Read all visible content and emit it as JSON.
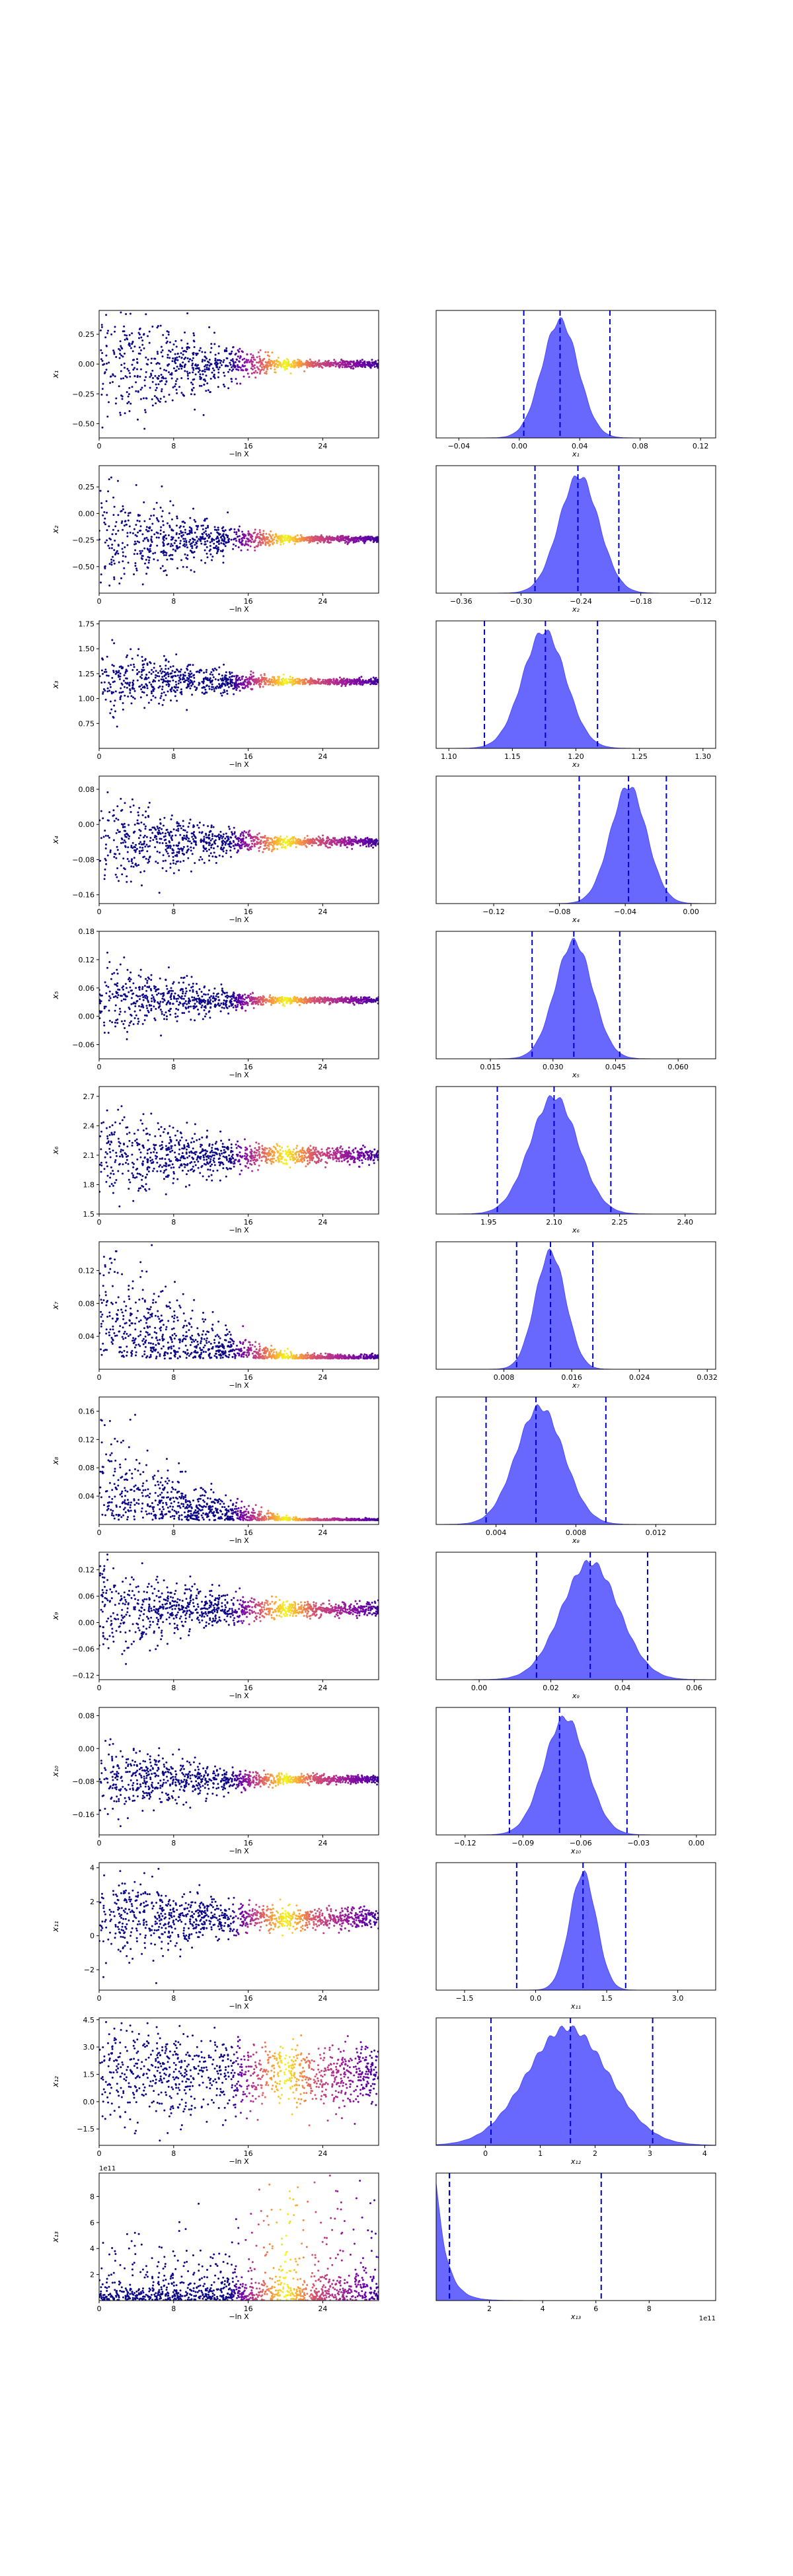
{
  "colors": {
    "hist_fill": "#4d4dff",
    "quantile_line": "#0000cc",
    "axes": "#000000",
    "scatter_colormap": [
      "#0d0887",
      "#6a00a8",
      "#b12a90",
      "#e16462",
      "#fca636",
      "#f0f921"
    ]
  },
  "chart_data": {
    "type": "scatter",
    "description_of_panels": "Left column: trace plots of each parameter vs -ln X, colored by posterior weight (plasma). Right column: marginal posterior histograms with dashed 2.5/50/97.5 percent lines.",
    "trace_xlabel": "−ln X",
    "trace_xticks": [
      "0",
      "8",
      "16",
      "24"
    ],
    "trace_xlim": [
      0,
      30
    ],
    "rows": [
      {
        "label": "x₁",
        "trace_yticks": [
          "0.25",
          "0.00",
          "−0.25",
          "−0.50"
        ],
        "trace_ylim": [
          -0.62,
          0.45
        ],
        "trace_center": 0.0,
        "trace_spread_start": 0.3,
        "trace_spread_end": 0.015,
        "hist_xlabel": "x₁",
        "hist_xticks": [
          "−0.04",
          "0.00",
          "0.04",
          "0.08",
          "0.12"
        ],
        "hist_xlim": [
          -0.055,
          0.13
        ],
        "hist_mean": 0.027,
        "hist_sd": 0.012,
        "quantiles": [
          0.003,
          0.027,
          0.06
        ]
      },
      {
        "label": "x₂",
        "trace_yticks": [
          "0.25",
          "0.00",
          "−0.25",
          "−0.50"
        ],
        "trace_ylim": [
          -0.75,
          0.45
        ],
        "trace_center": -0.24,
        "trace_spread_start": 0.25,
        "trace_spread_end": 0.015,
        "hist_xlabel": "x₂",
        "hist_xticks": [
          "−0.36",
          "−0.30",
          "−0.24",
          "−0.18",
          "−0.12"
        ],
        "hist_xlim": [
          -0.385,
          -0.105
        ],
        "hist_mean": -0.242,
        "hist_sd": 0.02,
        "quantiles": [
          -0.286,
          -0.243,
          -0.202
        ]
      },
      {
        "label": "x₃",
        "trace_yticks": [
          "1.75",
          "1.50",
          "1.25",
          "1.00",
          "0.75"
        ],
        "trace_ylim": [
          0.5,
          1.78
        ],
        "trace_center": 1.17,
        "trace_spread_start": 0.18,
        "trace_spread_end": 0.015,
        "hist_xlabel": "x₃",
        "hist_xticks": [
          "1.10",
          "1.15",
          "1.20",
          "1.25",
          "1.30"
        ],
        "hist_xlim": [
          1.09,
          1.31
        ],
        "hist_mean": 1.175,
        "hist_sd": 0.017,
        "quantiles": [
          1.128,
          1.176,
          1.217
        ]
      },
      {
        "label": "x₄",
        "trace_yticks": [
          "0.08",
          "0.00",
          "−0.08",
          "−0.16"
        ],
        "trace_ylim": [
          -0.18,
          0.11
        ],
        "trace_center": -0.04,
        "trace_spread_start": 0.05,
        "trace_spread_end": 0.005,
        "hist_xlabel": "x₄",
        "hist_xticks": [
          "−0.12",
          "−0.08",
          "−0.04",
          "0.00"
        ],
        "hist_xlim": [
          -0.155,
          0.015
        ],
        "hist_mean": -0.038,
        "hist_sd": 0.011,
        "quantiles": [
          -0.068,
          -0.038,
          -0.015
        ]
      },
      {
        "label": "x₅",
        "trace_yticks": [
          "0.18",
          "0.12",
          "0.06",
          "0.00",
          "−0.06"
        ],
        "trace_ylim": [
          -0.09,
          0.18
        ],
        "trace_center": 0.034,
        "trace_spread_start": 0.04,
        "trace_spread_end": 0.003,
        "hist_xlabel": "x₅",
        "hist_xticks": [
          "0.015",
          "0.030",
          "0.045",
          "0.060"
        ],
        "hist_xlim": [
          0.002,
          0.069
        ],
        "hist_mean": 0.035,
        "hist_sd": 0.0045,
        "quantiles": [
          0.025,
          0.035,
          0.046
        ]
      },
      {
        "label": "x₆",
        "trace_yticks": [
          "2.7",
          "2.4",
          "2.1",
          "1.8",
          "1.5"
        ],
        "trace_ylim": [
          1.5,
          2.8
        ],
        "trace_center": 2.1,
        "trace_spread_start": 0.2,
        "trace_spread_end": 0.04,
        "hist_xlabel": "x₆",
        "hist_xticks": [
          "1.95",
          "2.10",
          "2.25",
          "2.40"
        ],
        "hist_xlim": [
          1.83,
          2.47
        ],
        "hist_mean": 2.1,
        "hist_sd": 0.055,
        "quantiles": [
          1.97,
          2.1,
          2.23
        ]
      },
      {
        "label": "x₇",
        "trace_yticks": [
          "0.12",
          "0.08",
          "0.04"
        ],
        "trace_ylim": [
          0.0,
          0.155
        ],
        "trace_center": 0.013,
        "trace_spread_start": 0.06,
        "trace_spread_end": 0.002,
        "hist_xlabel": "x₇",
        "hist_xticks": [
          "0.008",
          "0.016",
          "0.024",
          "0.032"
        ],
        "hist_xlim": [
          0.0,
          0.033
        ],
        "hist_mean": 0.0135,
        "hist_sd": 0.0018,
        "quantiles": [
          0.0095,
          0.0135,
          0.0185
        ]
      },
      {
        "label": "x₈",
        "trace_yticks": [
          "0.16",
          "0.12",
          "0.08",
          "0.04"
        ],
        "trace_ylim": [
          0.0,
          0.18
        ],
        "trace_center": 0.006,
        "trace_spread_start": 0.06,
        "trace_spread_end": 0.001,
        "hist_xlabel": "x₈",
        "hist_xticks": [
          "0.004",
          "0.008",
          "0.012"
        ],
        "hist_xlim": [
          0.001,
          0.015
        ],
        "hist_mean": 0.0062,
        "hist_sd": 0.0012,
        "quantiles": [
          0.0035,
          0.006,
          0.0095
        ]
      },
      {
        "label": "x₉",
        "trace_yticks": [
          "0.12",
          "0.06",
          "0.00",
          "−0.06",
          "−0.12"
        ],
        "trace_ylim": [
          -0.13,
          0.16
        ],
        "trace_center": 0.03,
        "trace_spread_start": 0.05,
        "trace_spread_end": 0.008,
        "hist_xlabel": "x₉",
        "hist_xticks": [
          "0.00",
          "0.02",
          "0.04",
          "0.06"
        ],
        "hist_xlim": [
          -0.012,
          0.066
        ],
        "hist_mean": 0.031,
        "hist_sd": 0.008,
        "quantiles": [
          0.016,
          0.031,
          0.047
        ]
      },
      {
        "label": "x₁₀",
        "trace_yticks": [
          "0.08",
          "0.00",
          "−0.08",
          "−0.16"
        ],
        "trace_ylim": [
          -0.21,
          0.1
        ],
        "trace_center": -0.075,
        "trace_spread_start": 0.045,
        "trace_spread_end": 0.005,
        "hist_xlabel": "x₁₀",
        "hist_xticks": [
          "−0.12",
          "−0.09",
          "−0.06",
          "−0.03",
          "0.00"
        ],
        "hist_xlim": [
          -0.135,
          0.01
        ],
        "hist_mean": -0.068,
        "hist_sd": 0.011,
        "quantiles": [
          -0.097,
          -0.071,
          -0.036
        ]
      },
      {
        "label": "x₁₁",
        "trace_yticks": [
          "4",
          "2",
          "0",
          "−2"
        ],
        "trace_ylim": [
          -3.2,
          4.3
        ],
        "trace_center": 1.0,
        "trace_spread_start": 1.1,
        "trace_spread_end": 0.3,
        "hist_xlabel": "x₁₁",
        "hist_xticks": [
          "−1.5",
          "0.0",
          "1.5",
          "3.0"
        ],
        "hist_xlim": [
          -2.1,
          3.8
        ],
        "hist_mean": 1.0,
        "hist_sd": 0.28,
        "quantiles": [
          -0.4,
          1.0,
          1.9
        ]
      },
      {
        "label": "x₁₂",
        "trace_yticks": [
          "4.5",
          "3.0",
          "1.5",
          "0.0",
          "−1.5"
        ],
        "trace_ylim": [
          -2.4,
          4.6
        ],
        "trace_center": 1.5,
        "trace_spread_start": 1.1,
        "trace_spread_end": 0.8,
        "hist_xlabel": "x₁₂",
        "hist_xticks": [
          "0",
          "1",
          "2",
          "3",
          "4"
        ],
        "hist_xlim": [
          -0.9,
          4.2
        ],
        "hist_mean": 1.5,
        "hist_sd": 0.75,
        "quantiles": [
          0.1,
          1.55,
          3.05
        ]
      },
      {
        "label": "x₁₃",
        "trace_yticks": [
          "8",
          "6",
          "4",
          "2"
        ],
        "trace_ylim": [
          0,
          9.8
        ],
        "trace_offset_label": "1e11",
        "trace_center": 0.5,
        "trace_spread_start": 2.0,
        "trace_spread_end": 2.5,
        "hist_xlabel": "x₁₃",
        "hist_offset_label": "1e11",
        "hist_xticks": [
          "2",
          "4",
          "6",
          "8"
        ],
        "hist_xlim": [
          0,
          10.5
        ],
        "hist_mean": 0.3,
        "hist_sd": 0.4,
        "quantiles": [
          0.5,
          0.5,
          6.2
        ]
      }
    ]
  }
}
